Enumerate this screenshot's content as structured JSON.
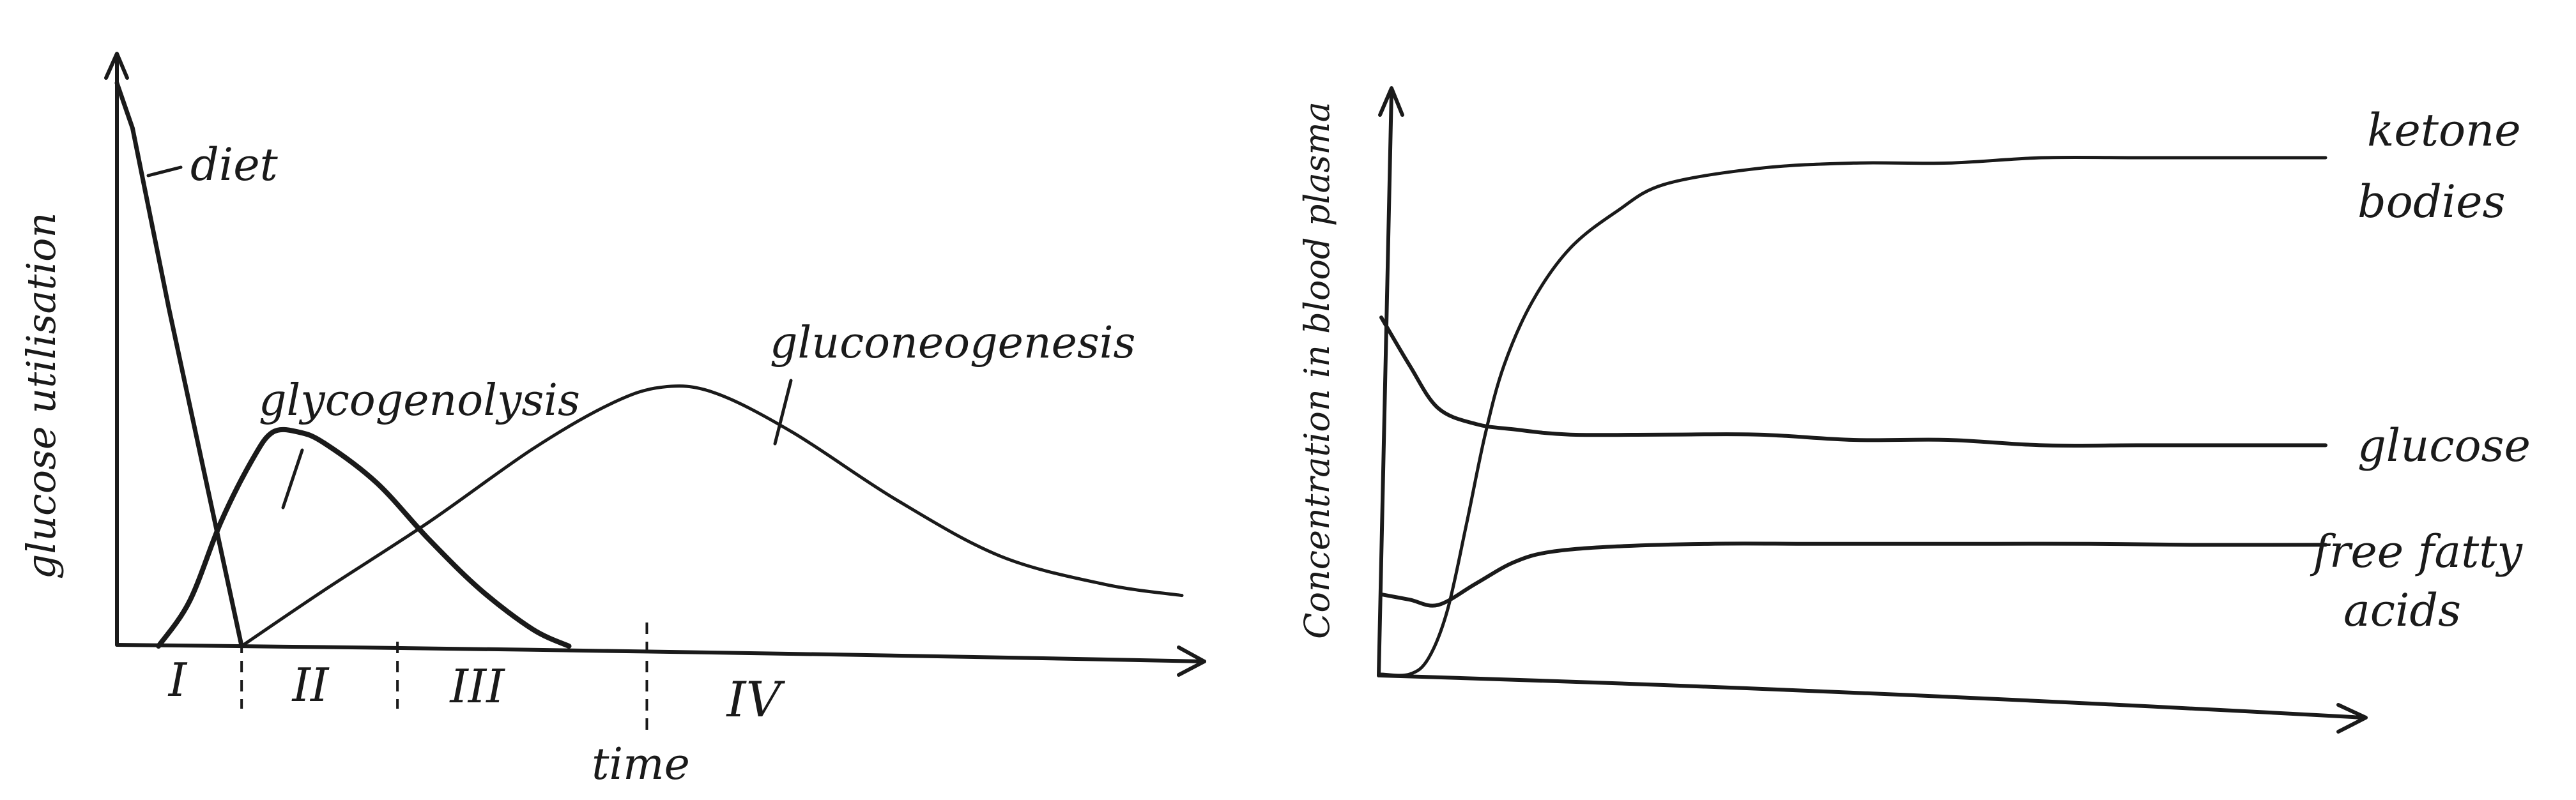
{
  "chart_data": [
    {
      "type": "line",
      "title": "",
      "xlabel": "time",
      "ylabel": "glucose utilisation",
      "x_units": "arbitrary time",
      "y_units": "relative",
      "phase_labels": [
        "I",
        "II",
        "III",
        "IV"
      ],
      "phase_boundaries": [
        2.4,
        5.4,
        10.2
      ],
      "xlim": [
        0,
        20.5
      ],
      "ylim": [
        0,
        100
      ],
      "grid": false,
      "legend": "none",
      "series": [
        {
          "name": "diet",
          "x": [
            0,
            0.3,
            1,
            2.4
          ],
          "y": [
            100,
            92,
            60,
            0
          ]
        },
        {
          "name": "glycogenolysis",
          "x": [
            0.8,
            1.4,
            2,
            2.6,
            3,
            3.5,
            4,
            5,
            6,
            7,
            8,
            8.7
          ],
          "y": [
            0,
            8,
            22,
            33,
            38,
            38,
            36,
            29,
            19,
            10,
            3,
            0
          ]
        },
        {
          "name": "gluconeogenesis",
          "x": [
            2.4,
            4,
            6,
            8,
            9.5,
            10.5,
            11.5,
            13,
            15,
            17,
            19,
            20.5
          ],
          "y": [
            0,
            10,
            22,
            35,
            43,
            46,
            45,
            38,
            26,
            16,
            11,
            9
          ]
        }
      ]
    },
    {
      "type": "line",
      "title": "",
      "xlabel": "",
      "ylabel": "Concentration in blood plasma",
      "xlim": [
        0,
        100
      ],
      "ylim": [
        0,
        100
      ],
      "grid": false,
      "legend": "none",
      "series": [
        {
          "name": "ketone bodies",
          "x": [
            0,
            3,
            5,
            7,
            9,
            11,
            13,
            16,
            20,
            25,
            30,
            40,
            50,
            60,
            70,
            80,
            90,
            100
          ],
          "y": [
            0,
            0,
            3,
            12,
            28,
            45,
            58,
            70,
            80,
            87,
            92,
            95,
            96,
            96,
            97,
            97,
            97,
            97
          ]
        },
        {
          "name": "glucose",
          "x": [
            0,
            3,
            6,
            10,
            14,
            20,
            30,
            40,
            50,
            60,
            70,
            80,
            90,
            100
          ],
          "y": [
            67,
            58,
            50,
            47,
            46,
            45,
            45,
            45,
            44,
            44,
            43,
            43,
            43,
            43
          ]
        },
        {
          "name": "free fatty acids",
          "x": [
            0,
            3,
            6,
            10,
            14,
            18,
            25,
            35,
            45,
            55,
            65,
            75,
            85,
            100
          ],
          "y": [
            15,
            14,
            13,
            17,
            21,
            23,
            24,
            24.5,
            24.5,
            24.5,
            24.5,
            24.5,
            24.3,
            24.3
          ]
        }
      ]
    }
  ],
  "labels": {
    "left": {
      "ylabel": "glucose utilisation",
      "xlabel": "time",
      "diet": "diet",
      "glycogenolysis": "glycogenolysis",
      "gluconeogenesis": "gluconeogenesis",
      "phase_I": "I",
      "phase_II": "II",
      "phase_III": "III",
      "phase_IV": "IV"
    },
    "right": {
      "ylabel": "Concentration in blood plasma",
      "ketone_line1": "ketone",
      "ketone_line2": "bodies",
      "glucose": "glucose",
      "ffa_line1": "free fatty",
      "ffa_line2": "acids"
    }
  },
  "colors": {
    "ink": "#1a1a1a",
    "background": "#ffffff"
  }
}
